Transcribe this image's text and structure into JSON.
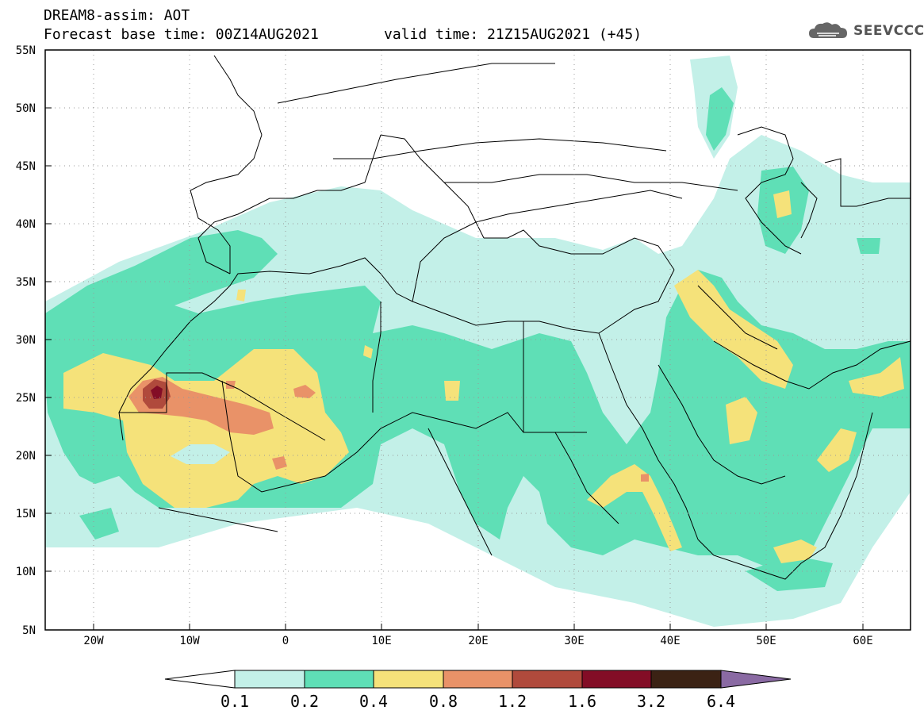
{
  "header": {
    "model_title": "DREAM8-assim: AOT",
    "forecast_base": "Forecast base time: 00Z14AUG2021",
    "valid_time": "valid time: 21Z15AUG2021 (+45)",
    "logo_text": "SEEVCCC"
  },
  "map": {
    "lat_labels": [
      "55N",
      "50N",
      "45N",
      "40N",
      "35N",
      "30N",
      "25N",
      "20N",
      "15N",
      "10N",
      "5N"
    ],
    "lon_labels": [
      "20W",
      "10W",
      "0",
      "10E",
      "20E",
      "30E",
      "40E",
      "50E",
      "60E"
    ]
  },
  "colorbar": {
    "labels": [
      "0.1",
      "0.2",
      "0.4",
      "0.8",
      "1.2",
      "1.6",
      "3.2",
      "6.4"
    ],
    "colors": [
      "#c3f0e8",
      "#5fdfb6",
      "#f5e27a",
      "#e99268",
      "#b04a3c",
      "#830d26",
      "#3b2214",
      "#8a6aa3"
    ]
  },
  "colors": {
    "level_01": "#c3f0e8",
    "level_02": "#5fdfb6",
    "level_04": "#f5e27a",
    "level_08": "#e99268",
    "level_12": "#b04a3c",
    "level_16": "#830d26"
  }
}
